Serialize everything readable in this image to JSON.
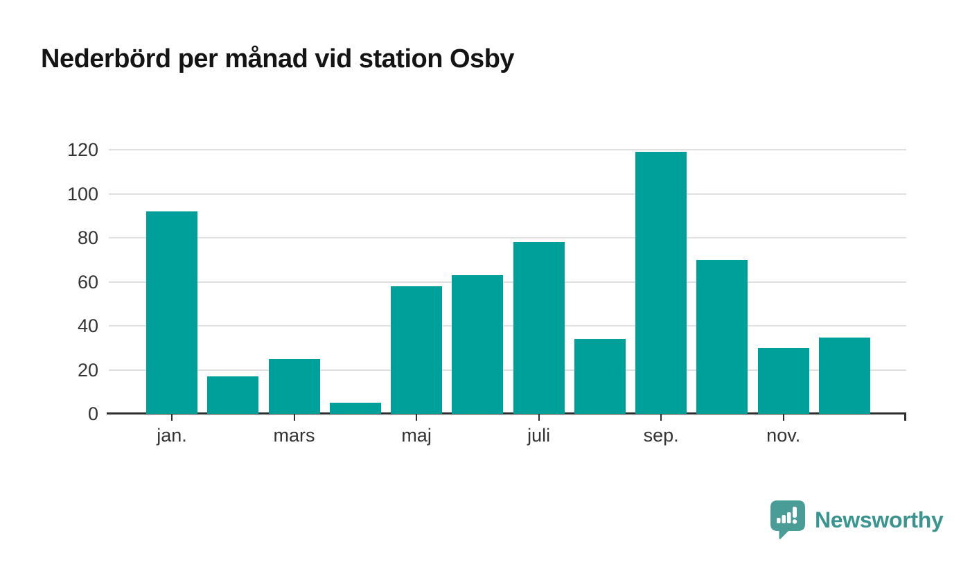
{
  "title": "Nederbörd per månad vid station Osby",
  "brand": {
    "name": "Newsworthy",
    "icon": "bar-chart-speech-bubble-icon",
    "mark_color": "#4a9c97",
    "text_color": "#3a948f"
  },
  "colors": {
    "bar": "#00a09a",
    "gridline": "#e0e0e0",
    "axis": "#2f2f2f",
    "tick_label": "#333333",
    "title_text": "#141414",
    "background": "#ffffff"
  },
  "chart_data": {
    "type": "bar",
    "title": "Nederbörd per månad vid station Osby",
    "xlabel": "",
    "ylabel": "",
    "categories": [
      1,
      2,
      3,
      4,
      5,
      6,
      7,
      8,
      9,
      10,
      11,
      12
    ],
    "values": [
      92,
      17,
      25,
      5,
      58,
      63,
      78,
      34,
      119,
      70,
      30,
      34.5
    ],
    "x_ticks": [
      {
        "index": 0,
        "label": "jan."
      },
      {
        "index": 2,
        "label": "mars"
      },
      {
        "index": 4,
        "label": "maj"
      },
      {
        "index": 6,
        "label": "juli"
      },
      {
        "index": 8,
        "label": "sep."
      },
      {
        "index": 10,
        "label": "nov."
      }
    ],
    "y_ticks": [
      0,
      20,
      40,
      60,
      80,
      100,
      120
    ],
    "ylim": [
      0,
      126
    ],
    "grid": "horizontal",
    "legend": "none",
    "bar_color": "#00a09a"
  }
}
